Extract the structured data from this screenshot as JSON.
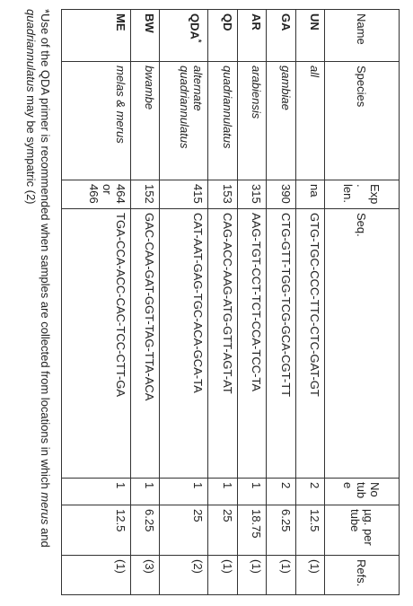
{
  "table": {
    "header": [
      "Name",
      "Species",
      "Exp. len.",
      "Seq.",
      "No tube",
      "µg. per tube",
      "Refs."
    ],
    "rows": [
      [
        {
          "text": "UN"
        },
        "all",
        "na",
        "GTG-TGC-CCC-TTC-CTC-GAT-GT",
        "2",
        "12.5",
        "(1)"
      ],
      [
        {
          "text": "GA"
        },
        "gambiae",
        "390",
        "CTG-GTT-TGG-TCG-GCA-CGT-TT",
        "2",
        "6.25",
        "(1)"
      ],
      [
        {
          "text": "AR"
        },
        "arabiensis",
        "315",
        "AAG-TGT-CCT-TCT-CCA-TCC-TA",
        "1",
        "18.75",
        "(1)"
      ],
      [
        {
          "text": "QD"
        },
        "quadriannulatus",
        "153",
        "CAG-ACC-AAG-ATG-GTT-AGT-AT",
        "1",
        "25",
        "(1)"
      ],
      [
        {
          "text": "QDA",
          "mark": "*"
        },
        "alternate quadriannulatus",
        "415",
        "CAT-AAT-GAG-TGC-ACA-GCA-TA",
        "1",
        "25",
        "(2)"
      ],
      [
        {
          "text": "BW"
        },
        "bwambe",
        "152",
        "GAC-CAA-GAT-GGT-TAG-TTA-ACA",
        "1",
        "6.25",
        "(3)"
      ],
      [
        {
          "text": "ME"
        },
        "melas & merus",
        "464 or 466",
        "TGA-CCA-ACC-CAC-TCC-CTT-GA",
        "1",
        "12.5",
        "(1)"
      ]
    ]
  },
  "footnote": [
    {
      "text": "*Use of the QDA primer is recommended when samples are collected from locations in which ",
      "italic": false
    },
    {
      "text": "merus",
      "italic": true
    },
    {
      "text": " and ",
      "italic": false
    },
    {
      "text": "quadriannulatus",
      "italic": true
    },
    {
      "text": " may be sympatric (2)",
      "italic": false
    }
  ]
}
